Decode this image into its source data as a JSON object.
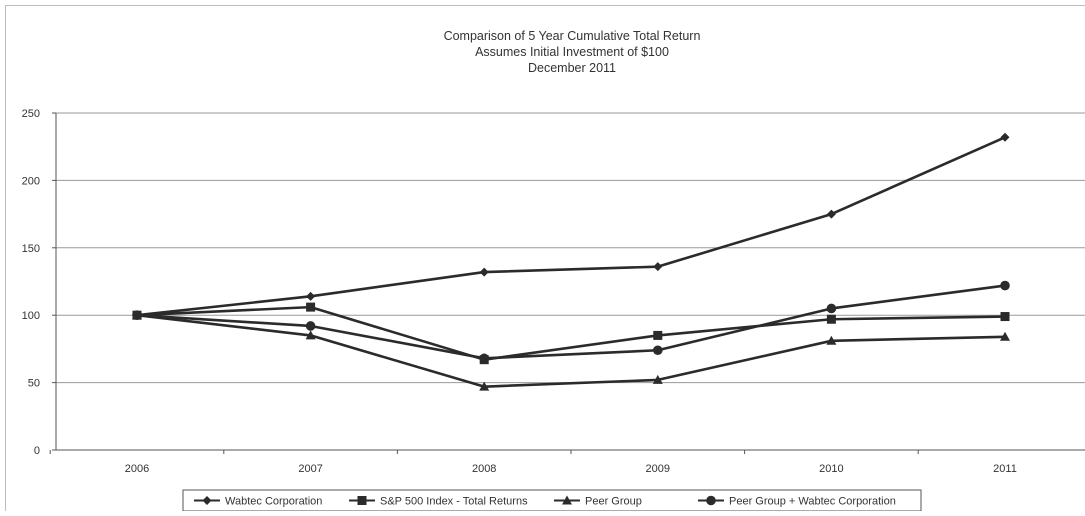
{
  "chart_data": {
    "type": "line",
    "title_lines": [
      "Comparison of 5 Year Cumulative Total Return",
      "Assumes Initial Investment of $100",
      "December 2011"
    ],
    "xlabel": "",
    "ylabel": "",
    "categories": [
      "2006",
      "2007",
      "2008",
      "2009",
      "2010",
      "2011"
    ],
    "ylim": [
      0,
      250
    ],
    "yticks": [
      0,
      50,
      100,
      150,
      200,
      250
    ],
    "ytick_labels": [
      "0",
      "50",
      "100",
      "150",
      "200",
      "250"
    ],
    "grid": true,
    "legend_position": "bottom",
    "series": [
      {
        "name": "Wabtec Corporation",
        "marker": "diamond",
        "values": [
          100,
          114,
          132,
          136,
          175,
          232
        ]
      },
      {
        "name": "S&P 500 Index - Total Returns",
        "marker": "square",
        "values": [
          100,
          106,
          67,
          85,
          97,
          99
        ]
      },
      {
        "name": "Peer Group",
        "marker": "triangle",
        "values": [
          100,
          85,
          47,
          52,
          81,
          84
        ]
      },
      {
        "name": "Peer Group + Wabtec Corporation",
        "marker": "circle",
        "values": [
          100,
          92,
          68,
          74,
          105,
          122
        ]
      }
    ],
    "colors": {
      "line": "#2b2b2b",
      "grid": "#9a9a9a",
      "axis": "#555555",
      "text": "#333333"
    }
  }
}
